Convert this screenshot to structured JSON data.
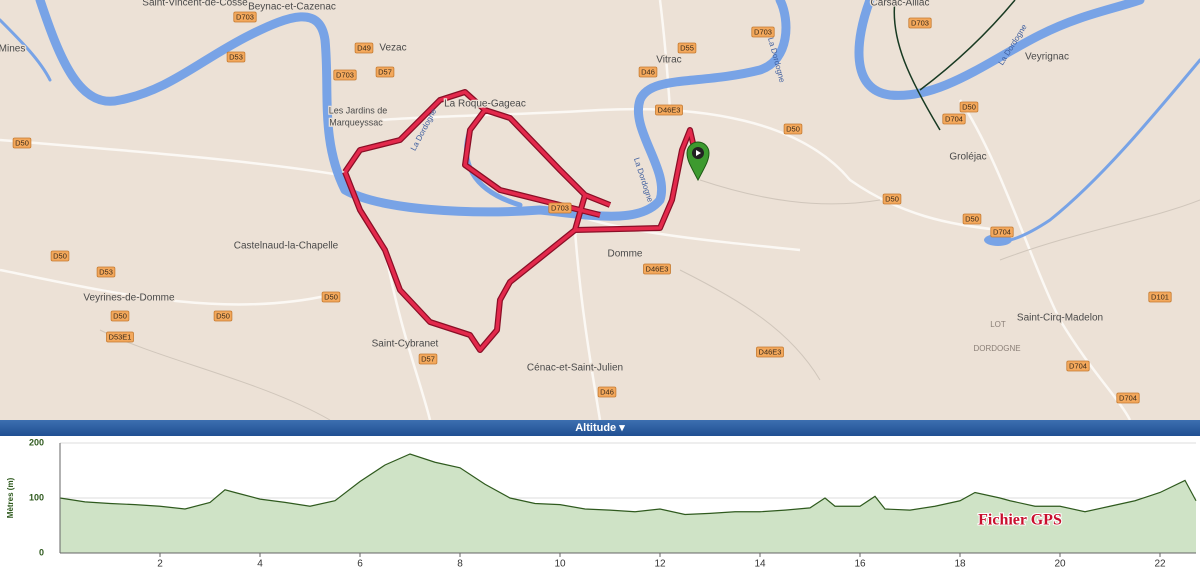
{
  "map": {
    "places": [
      "Saint-Vincent-de-Cosse",
      "Beynac-et-Cazenac",
      "Vezac",
      "Vitrac",
      "Carsac-Aillac",
      "Veyrignac",
      "Mines",
      "Les Jardins de",
      "Marqueyssac",
      "La Roque-Gageac",
      "Groléjac",
      "Castelnaud-la-Chapelle",
      "Domme",
      "Veyrines-de-Domme",
      "Saint-Cybranet",
      "Cénac-et-Saint-Julien",
      "Saint-Cirq-Madelon"
    ],
    "regions": [
      "LOT",
      "DORDOGNE"
    ],
    "rivers": [
      "La Dordogne",
      "La Dordogne",
      "La Dordogne",
      "La Dordogne"
    ],
    "roads": [
      "D703",
      "D49",
      "D53",
      "D703",
      "D57",
      "D55",
      "D703",
      "D703",
      "D46",
      "D46E3",
      "D50",
      "D50",
      "D704",
      "D50",
      "D50",
      "D50",
      "D704",
      "D703",
      "D50",
      "D53",
      "D50",
      "D50",
      "D50",
      "D53E1",
      "D57",
      "D46E3",
      "D46E3",
      "D46",
      "D101",
      "D704",
      "D704"
    ]
  },
  "altitude_header": "Altitude",
  "chart_data": {
    "type": "area",
    "y_label": "Mètres (m)",
    "annotation": "Fichier GPS",
    "x": [
      0,
      0.5,
      1,
      1.5,
      2,
      2.5,
      3,
      3.3,
      3.5,
      4,
      4.5,
      5,
      5.5,
      6,
      6.5,
      7,
      7.5,
      8,
      8.5,
      9,
      9.5,
      10,
      10.5,
      11,
      11.5,
      12,
      12.5,
      13,
      13.5,
      14,
      14.5,
      15,
      15.3,
      15.5,
      16,
      16.3,
      16.5,
      17,
      17.5,
      18,
      18.3,
      18.8,
      19,
      19.5,
      20,
      20.5,
      21,
      21.5,
      22,
      22.5,
      22.72
    ],
    "values": [
      100,
      93,
      90,
      88,
      85,
      80,
      92,
      115,
      110,
      98,
      92,
      85,
      95,
      130,
      160,
      180,
      165,
      155,
      125,
      100,
      90,
      88,
      80,
      78,
      75,
      80,
      70,
      72,
      75,
      75,
      78,
      82,
      100,
      85,
      85,
      103,
      80,
      78,
      85,
      95,
      110,
      100,
      95,
      85,
      85,
      75,
      85,
      95,
      110,
      132,
      95
    ],
    "color": "#cfe3c6",
    "line_color": "#2f5a1e",
    "xlim": [
      0,
      22.72
    ],
    "ylim": [
      0,
      200
    ],
    "xticks": [
      2,
      4,
      6,
      8,
      10,
      12,
      14,
      16,
      18,
      20,
      22
    ],
    "yticks": [
      0,
      100,
      200
    ],
    "grid": true
  }
}
